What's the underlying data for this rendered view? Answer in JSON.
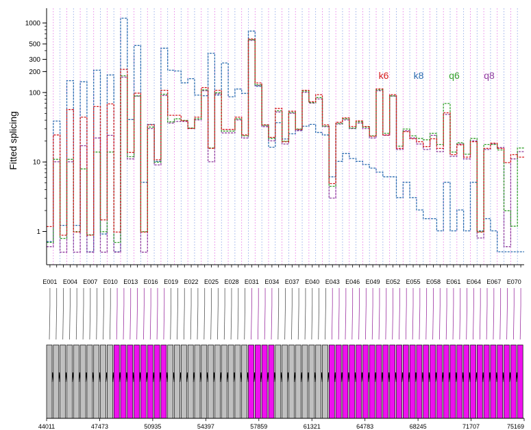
{
  "colors": {
    "k6": "#d7191c",
    "k8": "#2b6cb0",
    "q6": "#33a02c",
    "q8": "#8e3b9e",
    "constitutive": "#c0c0c0",
    "alternative": "#ee10ee",
    "connector_plain": "#555555",
    "connector_alt": "#9b2fa0"
  },
  "chart_data": {
    "type": "line",
    "xlabel": "",
    "ylabel": "Fitted splicing",
    "yscale": "log",
    "ylim": [
      0.5,
      1300
    ],
    "yticks": [
      1,
      10,
      100,
      200,
      300,
      500,
      1000
    ],
    "grid": true,
    "legend": {
      "placement": "top-right",
      "entries": [
        "k6",
        "k8",
        "q6",
        "q8"
      ]
    },
    "exons_total": 71,
    "exon_tick_labels": [
      "E001",
      "E004",
      "E007",
      "E010",
      "E013",
      "E016",
      "E019",
      "E022",
      "E025",
      "E028",
      "E031",
      "E034",
      "E037",
      "E040",
      "E043",
      "E046",
      "E049",
      "E052",
      "E055",
      "E058",
      "E061",
      "E064",
      "E067",
      "E070"
    ],
    "series": [
      {
        "name": "k6",
        "values": [
          1.2,
          25,
          0.9,
          58,
          1,
          45,
          0.9,
          64,
          1.5,
          70,
          1,
          220,
          14,
          100,
          1,
          35,
          11,
          110,
          48,
          48,
          40,
          31,
          45,
          120,
          16,
          110,
          30,
          30,
          45,
          25,
          600,
          140,
          35,
          23,
          60,
          20,
          55,
          30,
          110,
          75,
          95,
          35,
          5,
          38,
          44,
          33,
          40,
          33,
          24,
          115,
          25,
          95,
          16,
          28,
          22,
          20,
          17,
          22,
          16,
          52,
          13,
          18,
          12,
          20,
          1,
          16,
          19,
          16,
          10,
          13,
          12
        ]
      },
      {
        "name": "k8",
        "values": [
          0.7,
          38,
          1.2,
          145,
          1.2,
          140,
          0.5,
          205,
          0.9,
          175,
          0.5,
          1150,
          40,
          465,
          5,
          34,
          10,
          425,
          205,
          200,
          135,
          155,
          90,
          88,
          360,
          90,
          260,
          85,
          110,
          95,
          750,
          120,
          33,
          16,
          36,
          21,
          25,
          28,
          32,
          34,
          26,
          24,
          6,
          10,
          13,
          11,
          10,
          9,
          8,
          7,
          6,
          6,
          3,
          5,
          3,
          2,
          1.5,
          1.5,
          1,
          5,
          1,
          2,
          1,
          5,
          1,
          1.5,
          1,
          0.5,
          0.5,
          0.5,
          0.5
        ]
      },
      {
        "name": "q6",
        "values": [
          0.7,
          11,
          0.8,
          11,
          1,
          8,
          0.9,
          14,
          1,
          14,
          0.7,
          175,
          12,
          90,
          1,
          32,
          10,
          95,
          38,
          42,
          40,
          31,
          42,
          110,
          16,
          100,
          28,
          28,
          42,
          24,
          580,
          130,
          34,
          22,
          55,
          20,
          52,
          30,
          105,
          72,
          85,
          33,
          4.5,
          36,
          42,
          31,
          38,
          32,
          24,
          110,
          26,
          90,
          17,
          30,
          24,
          22,
          21,
          26,
          18,
          70,
          14,
          19,
          13,
          22,
          1,
          18,
          18,
          15,
          2,
          1.2,
          16
        ]
      },
      {
        "name": "q8",
        "values": [
          0.6,
          10,
          0.5,
          10,
          0.5,
          17,
          0.5,
          22,
          0.5,
          24,
          0.5,
          165,
          11,
          88,
          0.5,
          30,
          9,
          90,
          36,
          38,
          38,
          30,
          40,
          105,
          10,
          95,
          26,
          26,
          40,
          22,
          560,
          125,
          32,
          20,
          52,
          18,
          50,
          28,
          100,
          70,
          80,
          32,
          3,
          35,
          40,
          30,
          36,
          30,
          22,
          105,
          24,
          88,
          15,
          28,
          22,
          18,
          15,
          24,
          14,
          48,
          12,
          18,
          11,
          20,
          0.8,
          15,
          18,
          16,
          0.6,
          11,
          14
        ]
      }
    ],
    "gene_axis": {
      "tick_labels": [
        "44011",
        "47473",
        "50935",
        "54397",
        "57859",
        "61321",
        "64783",
        "68245",
        "71707",
        "75169"
      ]
    }
  }
}
